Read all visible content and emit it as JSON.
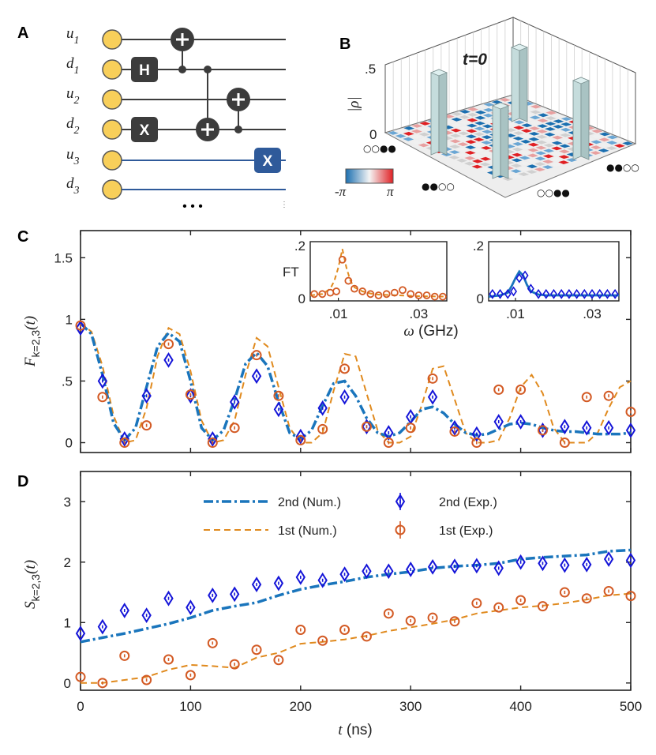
{
  "colors": {
    "num2": "#1a75bc",
    "num1": "#e08a1e",
    "exp2": "#1414d8",
    "exp1": "#d35a24",
    "qubit": "#f8cf5a",
    "gate_dark": "#3c3c3c",
    "gate_blue": "#2f5a9a",
    "bar": "#c5dcdc",
    "cmap_neg": "#1b6fb0",
    "cmap_pos": "#e02024"
  },
  "panelA": {
    "label": "A",
    "qubits": [
      {
        "name": "u",
        "sub": "1"
      },
      {
        "name": "d",
        "sub": "1"
      },
      {
        "name": "u",
        "sub": "2"
      },
      {
        "name": "d",
        "sub": "2"
      },
      {
        "name": "u",
        "sub": "3"
      },
      {
        "name": "d",
        "sub": "3"
      }
    ],
    "gates": {
      "h": "H",
      "x1": "X",
      "x2": "X"
    },
    "ellipsis": "• • •",
    "tail_dots": "⋮"
  },
  "panelB": {
    "label": "B",
    "title": "t=0",
    "ylabel": "|ρ|",
    "ticks": [
      ".5",
      "0"
    ],
    "colorbar": {
      "min": "-π",
      "max": "π"
    },
    "basis_states": [
      "○○●●",
      "●●○○"
    ]
  },
  "chart_data": [
    {
      "panel": "C",
      "type": "line",
      "title": "",
      "xlabel": "",
      "ylabel": "F_{k=2,3}(t)",
      "ylabel_main": "F",
      "ylabel_sub": "k=2,3",
      "ylabel_arg": "(t)",
      "xlim": [
        0,
        500
      ],
      "ylim": [
        -0.08,
        1.72
      ],
      "yticks": [
        0,
        0.5,
        1,
        1.5
      ],
      "ytick_labels": [
        "0",
        ".5",
        "1",
        "1.5"
      ],
      "x_exp": [
        0,
        20,
        40,
        60,
        80,
        100,
        120,
        140,
        160,
        180,
        200,
        220,
        240,
        260,
        280,
        300,
        320,
        340,
        360,
        380,
        400,
        420,
        440,
        460,
        480,
        500
      ],
      "series": [
        {
          "name": "2nd (Num.)",
          "style": "dashdot",
          "x": [
            0,
            10,
            20,
            30,
            40,
            50,
            60,
            70,
            80,
            90,
            100,
            110,
            120,
            130,
            140,
            150,
            160,
            170,
            180,
            190,
            200,
            210,
            220,
            230,
            240,
            250,
            260,
            270,
            280,
            290,
            300,
            310,
            320,
            330,
            340,
            350,
            360,
            370,
            380,
            390,
            400,
            410,
            420,
            430,
            440,
            450,
            460,
            470,
            480,
            490,
            500
          ],
          "y": [
            0.97,
            0.88,
            0.55,
            0.16,
            0.02,
            0.12,
            0.45,
            0.78,
            0.89,
            0.82,
            0.5,
            0.12,
            0.02,
            0.1,
            0.35,
            0.64,
            0.73,
            0.62,
            0.33,
            0.08,
            0.03,
            0.1,
            0.3,
            0.48,
            0.5,
            0.38,
            0.2,
            0.08,
            0.05,
            0.08,
            0.17,
            0.27,
            0.29,
            0.24,
            0.15,
            0.08,
            0.06,
            0.07,
            0.11,
            0.15,
            0.16,
            0.15,
            0.12,
            0.1,
            0.09,
            0.09,
            0.08,
            0.07,
            0.07,
            0.07,
            0.08
          ]
        },
        {
          "name": "1st (Num.)",
          "style": "dashed",
          "x": [
            0,
            10,
            20,
            30,
            40,
            50,
            60,
            70,
            80,
            90,
            100,
            110,
            120,
            130,
            140,
            150,
            160,
            170,
            180,
            190,
            200,
            210,
            220,
            230,
            240,
            250,
            260,
            270,
            280,
            290,
            300,
            310,
            320,
            330,
            340,
            350,
            360,
            370,
            380,
            390,
            400,
            410,
            420,
            430,
            440,
            450,
            460,
            470,
            480,
            490,
            500
          ],
          "y": [
            0.97,
            0.9,
            0.62,
            0.22,
            0.0,
            0.02,
            0.28,
            0.7,
            0.93,
            0.88,
            0.58,
            0.18,
            0.0,
            0.02,
            0.18,
            0.55,
            0.85,
            0.78,
            0.45,
            0.12,
            0.0,
            0.0,
            0.08,
            0.42,
            0.72,
            0.7,
            0.4,
            0.1,
            0.0,
            0.0,
            0.05,
            0.3,
            0.6,
            0.62,
            0.35,
            0.08,
            0.0,
            0.0,
            0.02,
            0.2,
            0.45,
            0.55,
            0.4,
            0.12,
            0.0,
            0.0,
            0.0,
            0.08,
            0.28,
            0.45,
            0.5
          ]
        },
        {
          "name": "2nd (Exp.)",
          "style": "diamond",
          "y": [
            0.93,
            0.5,
            0.03,
            0.38,
            0.67,
            0.38,
            0.03,
            0.33,
            0.54,
            0.27,
            0.05,
            0.28,
            0.37,
            0.13,
            0.08,
            0.21,
            0.37,
            0.12,
            0.07,
            0.17,
            0.17,
            0.1,
            0.13,
            0.12,
            0.12,
            0.1
          ]
        },
        {
          "name": "1st (Exp.)",
          "style": "circle",
          "y": [
            0.95,
            0.37,
            0.0,
            0.14,
            0.8,
            0.39,
            0.0,
            0.12,
            0.71,
            0.38,
            0.02,
            0.11,
            0.6,
            0.13,
            0.0,
            0.12,
            0.52,
            0.09,
            0.0,
            0.43,
            0.43,
            0.1,
            0.0,
            0.37,
            0.38,
            0.25
          ]
        }
      ],
      "insets": [
        {
          "type": "line",
          "ylabel": "FT",
          "xlabel": "ω (GHz)",
          "xlabel_main": "ω",
          "xlabel_unit": " (GHz)",
          "xlim": [
            0.003,
            0.037
          ],
          "ylim": [
            0,
            0.2
          ],
          "xticks": [
            0.01,
            0.03
          ],
          "xtick_labels": [
            ".01",
            ".03"
          ],
          "yticks": [
            0,
            0.2
          ],
          "ytick_labels": [
            "0",
            ".2"
          ],
          "series_name": "1st",
          "curve_x": [
            0.003,
            0.006,
            0.008,
            0.009,
            0.01,
            0.011,
            0.012,
            0.013,
            0.014,
            0.016,
            0.018,
            0.02,
            0.025,
            0.03,
            0.037
          ],
          "curve_y": [
            0.015,
            0.02,
            0.04,
            0.07,
            0.12,
            0.19,
            0.12,
            0.07,
            0.045,
            0.03,
            0.022,
            0.018,
            0.015,
            0.012,
            0.01
          ],
          "points_x": [
            0.004,
            0.006,
            0.008,
            0.0095,
            0.011,
            0.0125,
            0.014,
            0.016,
            0.018,
            0.02,
            0.022,
            0.024,
            0.026,
            0.028,
            0.03,
            0.032,
            0.034,
            0.036
          ],
          "points_y": [
            0.02,
            0.02,
            0.025,
            0.03,
            0.15,
            0.07,
            0.04,
            0.03,
            0.02,
            0.015,
            0.02,
            0.025,
            0.035,
            0.02,
            0.015,
            0.015,
            0.01,
            0.01
          ]
        },
        {
          "type": "line",
          "ylabel": "",
          "xlabel": "",
          "xlim": [
            0.003,
            0.037
          ],
          "ylim": [
            0,
            0.2
          ],
          "xticks": [
            0.01,
            0.03
          ],
          "xtick_labels": [
            ".01",
            ".03"
          ],
          "yticks": [
            0,
            0.2
          ],
          "ytick_labels": [
            "0",
            ".2"
          ],
          "series_name": "2nd",
          "curve_x": [
            0.003,
            0.006,
            0.008,
            0.009,
            0.01,
            0.011,
            0.012,
            0.013,
            0.014,
            0.016,
            0.018,
            0.02,
            0.025,
            0.03,
            0.037
          ],
          "curve_y": [
            0.01,
            0.015,
            0.025,
            0.05,
            0.08,
            0.105,
            0.09,
            0.055,
            0.03,
            0.018,
            0.015,
            0.015,
            0.015,
            0.015,
            0.015
          ],
          "points_x": [
            0.004,
            0.006,
            0.008,
            0.0095,
            0.011,
            0.0125,
            0.014,
            0.016,
            0.018,
            0.02,
            0.022,
            0.024,
            0.026,
            0.028,
            0.03,
            0.032,
            0.034,
            0.036
          ],
          "points_y": [
            0.02,
            0.02,
            0.02,
            0.03,
            0.08,
            0.09,
            0.04,
            0.02,
            0.02,
            0.02,
            0.02,
            0.02,
            0.02,
            0.02,
            0.02,
            0.02,
            0.02,
            0.02
          ]
        }
      ]
    },
    {
      "panel": "D",
      "type": "line",
      "title": "",
      "xlabel": "t (ns)",
      "xlabel_main": "t",
      "xlabel_unit": " (ns)",
      "ylabel": "S_{k=2,3}(t)",
      "ylabel_main": "S",
      "ylabel_sub": "k=2,3",
      "ylabel_arg": "(t)",
      "xlim": [
        0,
        500
      ],
      "ylim": [
        -0.12,
        3.5
      ],
      "xticks": [
        0,
        100,
        200,
        300,
        400,
        500
      ],
      "xtick_labels": [
        "0",
        "100",
        "200",
        "300",
        "400",
        "500"
      ],
      "yticks": [
        0,
        1,
        2,
        3
      ],
      "ytick_labels": [
        "0",
        "1",
        "2",
        "3"
      ],
      "legend": {
        "placement": "top-center",
        "entries": [
          "2nd (Num.)",
          "1st  (Num.)",
          "2nd (Exp.)",
          "1st  (Exp.)"
        ]
      },
      "x_exp": [
        0,
        20,
        40,
        60,
        80,
        100,
        120,
        140,
        160,
        180,
        200,
        220,
        240,
        260,
        280,
        300,
        320,
        340,
        360,
        380,
        400,
        420,
        440,
        460,
        480,
        500
      ],
      "series": [
        {
          "name": "2nd (Num.)",
          "style": "dashdot",
          "x": [
            0,
            20,
            40,
            60,
            80,
            100,
            120,
            140,
            160,
            180,
            200,
            220,
            240,
            260,
            280,
            300,
            320,
            340,
            360,
            380,
            400,
            420,
            440,
            460,
            480,
            500
          ],
          "y": [
            0.68,
            0.75,
            0.82,
            0.9,
            0.98,
            1.08,
            1.2,
            1.27,
            1.33,
            1.45,
            1.55,
            1.62,
            1.68,
            1.75,
            1.8,
            1.84,
            1.9,
            1.93,
            1.95,
            1.98,
            2.05,
            2.08,
            2.1,
            2.12,
            2.18,
            2.2
          ]
        },
        {
          "name": "1st  (Num.)",
          "style": "dashed",
          "x": [
            0,
            20,
            40,
            60,
            80,
            100,
            120,
            140,
            160,
            180,
            200,
            220,
            240,
            260,
            280,
            300,
            320,
            340,
            360,
            380,
            400,
            420,
            440,
            460,
            480,
            500
          ],
          "y": [
            0.0,
            0.0,
            0.05,
            0.1,
            0.22,
            0.3,
            0.28,
            0.25,
            0.42,
            0.5,
            0.65,
            0.68,
            0.72,
            0.78,
            0.86,
            0.92,
            0.98,
            1.05,
            1.15,
            1.2,
            1.25,
            1.28,
            1.32,
            1.38,
            1.45,
            1.48
          ]
        },
        {
          "name": "2nd (Exp.)",
          "style": "diamond",
          "y": [
            0.82,
            0.93,
            1.2,
            1.12,
            1.4,
            1.25,
            1.45,
            1.47,
            1.63,
            1.65,
            1.75,
            1.7,
            1.8,
            1.85,
            1.85,
            1.88,
            1.92,
            1.93,
            1.94,
            1.9,
            2.0,
            1.98,
            1.95,
            1.96,
            2.05,
            2.03
          ]
        },
        {
          "name": "1st  (Exp.)",
          "style": "circle",
          "y": [
            0.1,
            0.0,
            0.45,
            0.05,
            0.39,
            0.13,
            0.66,
            0.31,
            0.55,
            0.38,
            0.88,
            0.7,
            0.88,
            0.77,
            1.15,
            1.03,
            1.08,
            1.02,
            1.32,
            1.25,
            1.37,
            1.27,
            1.5,
            1.4,
            1.52,
            1.44
          ]
        }
      ]
    }
  ]
}
